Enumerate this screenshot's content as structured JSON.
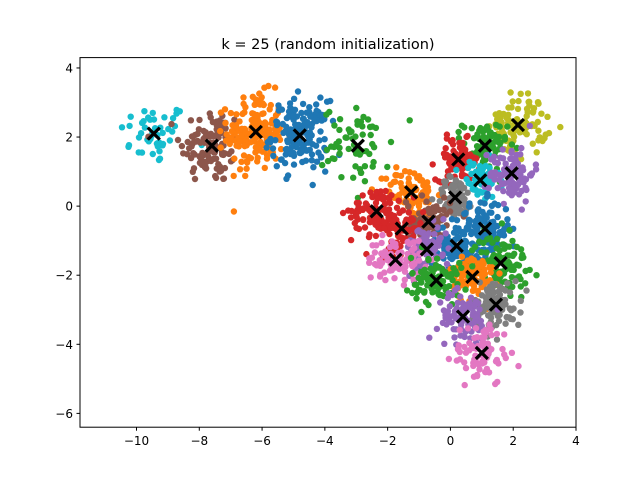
{
  "chart_data": {
    "type": "scatter",
    "title": "k = 25 (random initialization)",
    "xlabel": "",
    "ylabel": "",
    "xlim": [
      -11.8,
      4.0
    ],
    "ylim": [
      -6.4,
      4.3
    ],
    "grid": false,
    "legend": "none",
    "x_ticks": [
      -10,
      -8,
      -6,
      -4,
      -2,
      0,
      2,
      4
    ],
    "x_tick_labels": [
      "−10",
      "−8",
      "−6",
      "−4",
      "−2",
      "0",
      "2",
      "4"
    ],
    "y_ticks": [
      -6,
      -4,
      -2,
      0,
      2,
      4
    ],
    "y_tick_labels": [
      "−6",
      "−4",
      "−2",
      "0",
      "2",
      "4"
    ],
    "centroid_color": "#000000",
    "clusters": [
      {
        "color": "#17becf",
        "cx": -9.45,
        "cy": 2.1,
        "sx": 0.55,
        "sy": 0.45,
        "n": 45
      },
      {
        "color": "#8c564b",
        "cx": -7.6,
        "cy": 1.75,
        "sx": 0.5,
        "sy": 0.55,
        "n": 110
      },
      {
        "color": "#ff7f0e",
        "cx": -6.2,
        "cy": 2.15,
        "sx": 0.45,
        "sy": 0.55,
        "n": 180
      },
      {
        "color": "#1f77b4",
        "cx": -4.8,
        "cy": 2.05,
        "sx": 0.45,
        "sy": 0.5,
        "n": 150
      },
      {
        "color": "#2ca02c",
        "cx": -2.95,
        "cy": 1.75,
        "sx": 0.55,
        "sy": 0.55,
        "n": 60
      },
      {
        "color": "#bcbd22",
        "cx": 2.15,
        "cy": 2.35,
        "sx": 0.45,
        "sy": 0.45,
        "n": 90
      },
      {
        "color": "#2ca02c",
        "cx": 1.1,
        "cy": 1.75,
        "sx": 0.35,
        "sy": 0.35,
        "n": 70
      },
      {
        "color": "#d62728",
        "cx": 0.25,
        "cy": 1.35,
        "sx": 0.35,
        "sy": 0.3,
        "n": 80
      },
      {
        "color": "#17becf",
        "cx": 0.95,
        "cy": 0.75,
        "sx": 0.3,
        "sy": 0.3,
        "n": 60
      },
      {
        "color": "#9467bd",
        "cx": 1.95,
        "cy": 0.95,
        "sx": 0.35,
        "sy": 0.4,
        "n": 90
      },
      {
        "color": "#ff7f0e",
        "cx": -1.25,
        "cy": 0.4,
        "sx": 0.4,
        "sy": 0.35,
        "n": 90
      },
      {
        "color": "#7f7f7f",
        "cx": 0.15,
        "cy": 0.25,
        "sx": 0.3,
        "sy": 0.3,
        "n": 70
      },
      {
        "color": "#d62728",
        "cx": -2.35,
        "cy": -0.15,
        "sx": 0.4,
        "sy": 0.35,
        "n": 80
      },
      {
        "color": "#8c564b",
        "cx": -0.7,
        "cy": -0.45,
        "sx": 0.35,
        "sy": 0.35,
        "n": 80
      },
      {
        "color": "#d62728",
        "cx": -1.55,
        "cy": -0.65,
        "sx": 0.35,
        "sy": 0.35,
        "n": 70
      },
      {
        "color": "#1f77b4",
        "cx": 1.1,
        "cy": -0.65,
        "sx": 0.4,
        "sy": 0.4,
        "n": 110
      },
      {
        "color": "#1f77b4",
        "cx": 0.2,
        "cy": -1.15,
        "sx": 0.4,
        "sy": 0.35,
        "n": 100
      },
      {
        "color": "#9467bd",
        "cx": -0.75,
        "cy": -1.25,
        "sx": 0.35,
        "sy": 0.35,
        "n": 80
      },
      {
        "color": "#e377c2",
        "cx": -1.75,
        "cy": -1.55,
        "sx": 0.45,
        "sy": 0.3,
        "n": 80
      },
      {
        "color": "#2ca02c",
        "cx": 1.6,
        "cy": -1.65,
        "sx": 0.45,
        "sy": 0.4,
        "n": 110
      },
      {
        "color": "#ff7f0e",
        "cx": 0.7,
        "cy": -2.05,
        "sx": 0.35,
        "sy": 0.35,
        "n": 90
      },
      {
        "color": "#2ca02c",
        "cx": -0.45,
        "cy": -2.15,
        "sx": 0.4,
        "sy": 0.35,
        "n": 90
      },
      {
        "color": "#7f7f7f",
        "cx": 1.45,
        "cy": -2.85,
        "sx": 0.4,
        "sy": 0.35,
        "n": 100
      },
      {
        "color": "#9467bd",
        "cx": 0.4,
        "cy": -3.2,
        "sx": 0.4,
        "sy": 0.35,
        "n": 90
      },
      {
        "color": "#e377c2",
        "cx": 1.0,
        "cy": -4.25,
        "sx": 0.45,
        "sy": 0.45,
        "n": 80
      }
    ]
  }
}
